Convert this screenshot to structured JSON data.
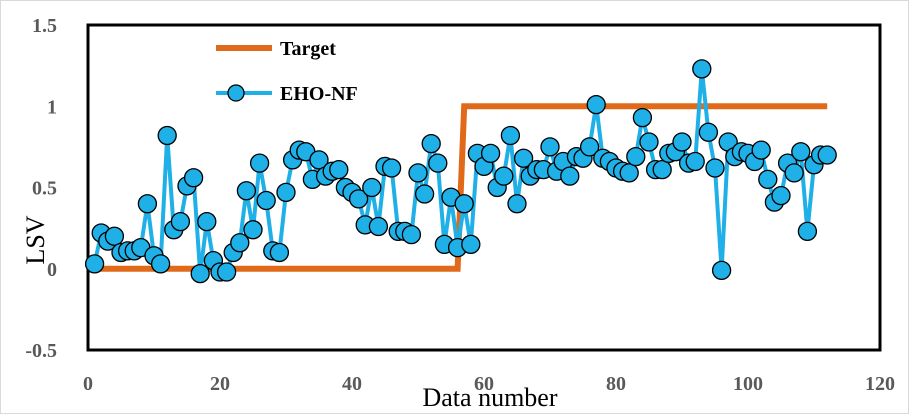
{
  "chart_data": {
    "type": "line",
    "xlabel": "Data number",
    "ylabel": "LSV",
    "xlim": [
      0,
      120
    ],
    "ylim": [
      -0.5,
      1.5
    ],
    "x_ticks": [
      "0",
      "20",
      "40",
      "60",
      "80",
      "100",
      "120"
    ],
    "y_ticks": [
      "-0.5",
      "0",
      "0.5",
      "1",
      "1.5"
    ],
    "grid": false,
    "legend_position": "top-left",
    "series": [
      {
        "name": "Target",
        "color": "#e06a1a",
        "marker": "none",
        "points": [
          [
            1,
            0
          ],
          [
            56,
            0
          ],
          [
            57,
            1
          ],
          [
            112,
            1
          ]
        ]
      },
      {
        "name": "EHO-NF",
        "color": "#1fb0e8",
        "marker": "circle",
        "x": [
          1,
          2,
          3,
          4,
          5,
          6,
          7,
          8,
          9,
          10,
          11,
          12,
          13,
          14,
          15,
          16,
          17,
          18,
          19,
          20,
          21,
          22,
          23,
          24,
          25,
          26,
          27,
          28,
          29,
          30,
          31,
          32,
          33,
          34,
          35,
          36,
          37,
          38,
          39,
          40,
          41,
          42,
          43,
          44,
          45,
          46,
          47,
          48,
          49,
          50,
          51,
          52,
          53,
          54,
          55,
          56,
          57,
          58,
          59,
          60,
          61,
          62,
          63,
          64,
          65,
          66,
          67,
          68,
          69,
          70,
          71,
          72,
          73,
          74,
          75,
          76,
          77,
          78,
          79,
          80,
          81,
          82,
          83,
          84,
          85,
          86,
          87,
          88,
          89,
          90,
          91,
          92,
          93,
          94,
          95,
          96,
          97,
          98,
          99,
          100,
          101,
          102,
          103,
          104,
          105,
          106,
          107,
          108,
          109,
          110,
          111,
          112
        ],
        "values": [
          0.03,
          0.22,
          0.17,
          0.2,
          0.1,
          0.11,
          0.11,
          0.13,
          0.4,
          0.08,
          0.03,
          0.82,
          0.24,
          0.29,
          0.51,
          0.56,
          -0.03,
          0.29,
          0.05,
          -0.02,
          -0.02,
          0.1,
          0.16,
          0.48,
          0.24,
          0.65,
          0.42,
          0.11,
          0.1,
          0.47,
          0.67,
          0.73,
          0.72,
          0.55,
          0.67,
          0.57,
          0.6,
          0.61,
          0.5,
          0.47,
          0.43,
          0.27,
          0.5,
          0.26,
          0.63,
          0.62,
          0.23,
          0.23,
          0.21,
          0.59,
          0.46,
          0.77,
          0.65,
          0.15,
          0.44,
          0.13,
          0.4,
          0.15,
          0.71,
          0.63,
          0.71,
          0.5,
          0.57,
          0.82,
          0.4,
          0.68,
          0.57,
          0.61,
          0.61,
          0.75,
          0.6,
          0.66,
          0.57,
          0.69,
          0.68,
          0.75,
          1.01,
          0.68,
          0.66,
          0.62,
          0.6,
          0.59,
          0.69,
          0.93,
          0.78,
          0.61,
          0.61,
          0.71,
          0.72,
          0.78,
          0.65,
          0.66,
          1.23,
          0.84,
          0.62,
          -0.01,
          0.78,
          0.69,
          0.72,
          0.71,
          0.66,
          0.73,
          0.55,
          0.41,
          0.45,
          0.65,
          0.59,
          0.72,
          0.23,
          0.64,
          0.7,
          0.7
        ]
      }
    ]
  }
}
